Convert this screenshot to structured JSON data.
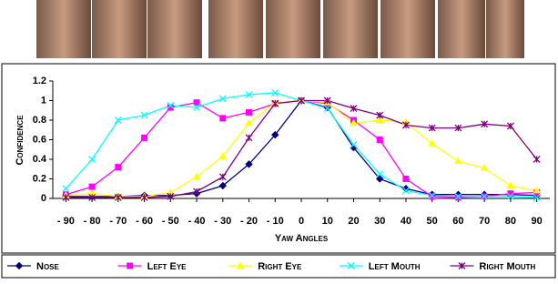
{
  "chart_data": {
    "type": "line",
    "x_label": "Yaw Angles",
    "y_label": "Confidence",
    "x": [
      -90,
      -80,
      -70,
      -60,
      -50,
      -40,
      -30,
      -20,
      -10,
      0,
      10,
      20,
      30,
      40,
      50,
      60,
      70,
      80,
      90
    ],
    "xlim": [
      -95,
      95
    ],
    "xticks": [
      {
        "value": -90,
        "label": "- 90"
      },
      {
        "value": -80,
        "label": "- 80"
      },
      {
        "value": -70,
        "label": "- 70"
      },
      {
        "value": -60,
        "label": "- 60"
      },
      {
        "value": -50,
        "label": "- 50"
      },
      {
        "value": -40,
        "label": "- 40"
      },
      {
        "value": -30,
        "label": "- 30"
      },
      {
        "value": -20,
        "label": "- 20"
      },
      {
        "value": -10,
        "label": "- 10"
      },
      0,
      10,
      20,
      30,
      40,
      50,
      60,
      70,
      80,
      90
    ],
    "ylim": [
      0,
      1.2
    ],
    "yticks": [
      0,
      0.2,
      0.4,
      0.6,
      0.8,
      1,
      1.2
    ],
    "grid": false,
    "series": [
      {
        "name": "Nose",
        "color": "#000080",
        "marker": "diamond",
        "values": [
          0.02,
          0.02,
          0.02,
          0.03,
          0.03,
          0.05,
          0.13,
          0.35,
          0.65,
          1.0,
          0.93,
          0.52,
          0.2,
          0.1,
          0.04,
          0.04,
          0.04,
          0.04,
          0.03
        ]
      },
      {
        "name": "Left Eye",
        "color": "#ff00ff",
        "marker": "square",
        "values": [
          0.04,
          0.12,
          0.32,
          0.62,
          0.93,
          0.98,
          0.82,
          0.88,
          0.97,
          1.0,
          0.97,
          0.8,
          0.6,
          0.2,
          0.02,
          0.01,
          0.02,
          0.05,
          0.06
        ]
      },
      {
        "name": "Right Eye",
        "color": "#ffff00",
        "marker": "triangle",
        "values": [
          0.03,
          0.05,
          0.02,
          0.02,
          0.06,
          0.22,
          0.43,
          0.77,
          0.98,
          1.0,
          0.98,
          0.77,
          0.8,
          0.78,
          0.56,
          0.38,
          0.31,
          0.13,
          0.08
        ]
      },
      {
        "name": "Left Mouth",
        "color": "#00ffff",
        "marker": "x",
        "values": [
          0.1,
          0.4,
          0.8,
          0.85,
          0.95,
          0.93,
          1.02,
          1.06,
          1.08,
          1.0,
          0.92,
          0.55,
          0.25,
          0.08,
          0.03,
          0.02,
          0.02,
          0.02,
          0.01
        ]
      },
      {
        "name": "Right Mouth",
        "color": "#800080",
        "marker": "star",
        "values": [
          0.01,
          0.01,
          0.01,
          0.01,
          0.02,
          0.07,
          0.22,
          0.62,
          0.97,
          1.0,
          1.0,
          0.92,
          0.85,
          0.75,
          0.72,
          0.72,
          0.76,
          0.74,
          0.4
        ]
      }
    ]
  }
}
